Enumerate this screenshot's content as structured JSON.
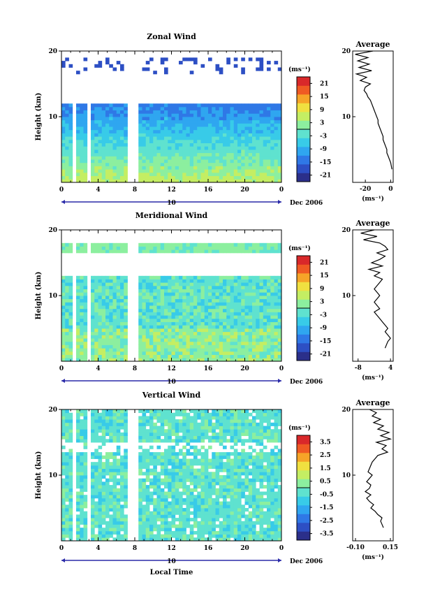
{
  "colors": {
    "axis": "#000000",
    "colormap": [
      "#2b2f8a",
      "#2d4fc4",
      "#2f78e6",
      "#2fa6f0",
      "#38cbe8",
      "#5fe2cf",
      "#8cef9f",
      "#c4ee63",
      "#f0e040",
      "#f6a428",
      "#ef5a23",
      "#d9282a"
    ]
  },
  "chart_data": [
    {
      "type": "heatmap",
      "title": "Zonal Wind",
      "ylabel": "Height (km)",
      "ylim": [
        0,
        20
      ],
      "yticks": [
        "20",
        "10"
      ],
      "xlim": [
        0,
        24
      ],
      "xticks": [
        "0",
        "4",
        "8",
        "12",
        "16",
        "20",
        "0"
      ],
      "date_day": "10",
      "date_label": "Dec 2006",
      "colorbar": {
        "unit": "(ms⁻¹)",
        "ticks": [
          "21",
          "15",
          "9",
          "3",
          "-3",
          "-9",
          "-15",
          "-21"
        ],
        "range": [
          -24,
          24
        ]
      },
      "profile": {
        "title": "Average",
        "xunit": "(ms⁻¹)",
        "xticks": [
          "-20",
          "0"
        ],
        "xlim": [
          -30,
          2
        ],
        "x": [
          -14,
          -28,
          -18,
          -26,
          -17,
          -25,
          -15,
          -27,
          -19,
          -24,
          -16,
          -20,
          -21,
          -19,
          -18,
          -16,
          -15,
          -14,
          -13,
          -12,
          -11,
          -10,
          -10,
          -9,
          -8,
          -7,
          -6,
          -6,
          -5,
          -4,
          -3,
          -3,
          -2,
          -1,
          0,
          1
        ],
        "heights": [
          20,
          19.5,
          19,
          18.5,
          18,
          17.5,
          17,
          16.5,
          16,
          15.5,
          15,
          14.5,
          14,
          13.5,
          13,
          12.5,
          12,
          11.5,
          11,
          10.5,
          10,
          9.5,
          9,
          8.5,
          8,
          7.5,
          7,
          6.5,
          6,
          5.5,
          5,
          4.5,
          4,
          3.5,
          3,
          2
        ]
      }
    },
    {
      "type": "heatmap",
      "title": "Meridional Wind",
      "ylabel": "Height (km)",
      "ylim": [
        0,
        20
      ],
      "yticks": [
        "20",
        "10"
      ],
      "xlim": [
        0,
        24
      ],
      "xticks": [
        "0",
        "4",
        "8",
        "12",
        "16",
        "20",
        "0"
      ],
      "date_day": "10",
      "date_label": "Dec 2006",
      "colorbar": {
        "unit": "(ms⁻¹)",
        "ticks": [
          "21",
          "15",
          "9",
          "3",
          "-3",
          "-9",
          "-15",
          "-21"
        ],
        "range": [
          -24,
          24
        ]
      },
      "profile": {
        "title": "Average",
        "xunit": "(ms⁻¹)",
        "xticks": [
          "-8",
          "4"
        ],
        "xlim": [
          -10,
          5
        ],
        "x": [
          -2,
          -7,
          -1,
          -6,
          0,
          2,
          3,
          -1,
          2,
          0,
          -3,
          1,
          -4,
          0,
          -2,
          1,
          0,
          -1,
          -2,
          -1,
          0,
          -1,
          -2,
          -1,
          0,
          -2,
          -1,
          0,
          1,
          2,
          3,
          2,
          3,
          4,
          3,
          2
        ],
        "heights": [
          20,
          19.5,
          19,
          18.5,
          18,
          17.5,
          17,
          16.5,
          16,
          15.5,
          15,
          14.5,
          14,
          13.5,
          13,
          12.5,
          12,
          11.5,
          11,
          10.5,
          10,
          9.5,
          9,
          8.5,
          8,
          7.5,
          7,
          6.5,
          6,
          5.5,
          5,
          4.5,
          4,
          3.5,
          3,
          2
        ]
      }
    },
    {
      "type": "heatmap",
      "title": "Vertical Wind",
      "ylabel": "Height (km)",
      "ylim": [
        0,
        20
      ],
      "yticks": [
        "20",
        "10"
      ],
      "xlim": [
        0,
        24
      ],
      "xticks": [
        "0",
        "4",
        "8",
        "12",
        "16",
        "20",
        "0"
      ],
      "date_day": "10",
      "date_label": "Dec 2006",
      "xlabel": "Local Time",
      "colorbar": {
        "unit": "(ms⁻¹)",
        "ticks": [
          "3.5",
          "2.5",
          "1.5",
          "0.5",
          "-0.5",
          "-1.5",
          "-2.5",
          "-3.5"
        ],
        "range": [
          -4,
          4
        ]
      },
      "profile": {
        "title": "Average",
        "xunit": "(ms⁻¹)",
        "xticks": [
          "-0.10",
          "0.15"
        ],
        "xlim": [
          -0.12,
          0.17
        ],
        "x": [
          0.0,
          0.05,
          0.02,
          0.08,
          0.03,
          0.1,
          0.06,
          0.14,
          0.08,
          0.15,
          0.05,
          0.12,
          0.09,
          0.13,
          0.06,
          0.04,
          0.02,
          0.01,
          0.0,
          -0.01,
          0.02,
          0.0,
          -0.02,
          0.01,
          0.0,
          -0.03,
          0.01,
          -0.02,
          0.0,
          0.03,
          0.01,
          0.04,
          0.06,
          0.09,
          0.08,
          0.1
        ],
        "heights": [
          20,
          19.5,
          19,
          18.5,
          18,
          17.5,
          17,
          16.5,
          16,
          15.5,
          15,
          14.5,
          14,
          13.5,
          13,
          12.5,
          12,
          11.5,
          11,
          10.5,
          10,
          9.5,
          9,
          8.5,
          8,
          7.5,
          7,
          6.5,
          6,
          5.5,
          5,
          4.5,
          4,
          3.5,
          3,
          2
        ]
      }
    }
  ]
}
